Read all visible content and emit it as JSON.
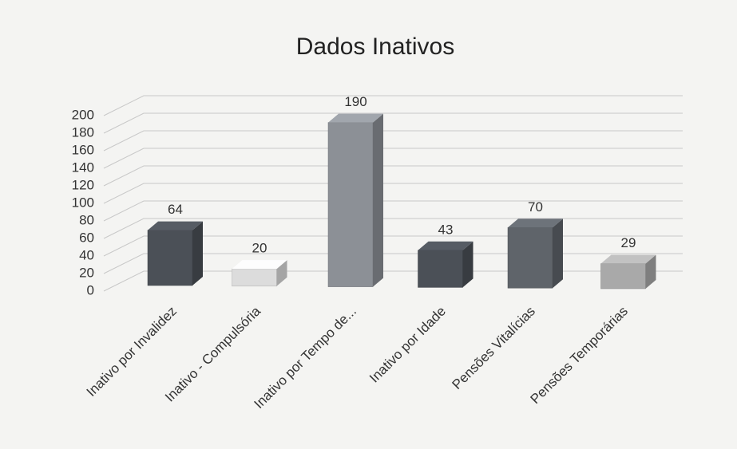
{
  "chart_data": {
    "type": "bar3d",
    "title": "Dados Inativos",
    "categories": [
      "Inativo por Invalidez",
      "Inativo - Compulsória",
      "Inativo por Tempo de...",
      "Inativo por Idade",
      "Pensões Vitalícias",
      "Pensões Temporárias"
    ],
    "values": [
      64,
      20,
      190,
      43,
      70,
      29
    ],
    "colors": [
      "#4b5057",
      "#dcdcdc",
      "#8c9096",
      "#4b5057",
      "#5f646a",
      "#a9a9a9"
    ],
    "ylim": [
      0,
      200
    ],
    "yticks": [
      0,
      20,
      40,
      60,
      80,
      100,
      120,
      140,
      160,
      180,
      200
    ],
    "grid": true
  }
}
